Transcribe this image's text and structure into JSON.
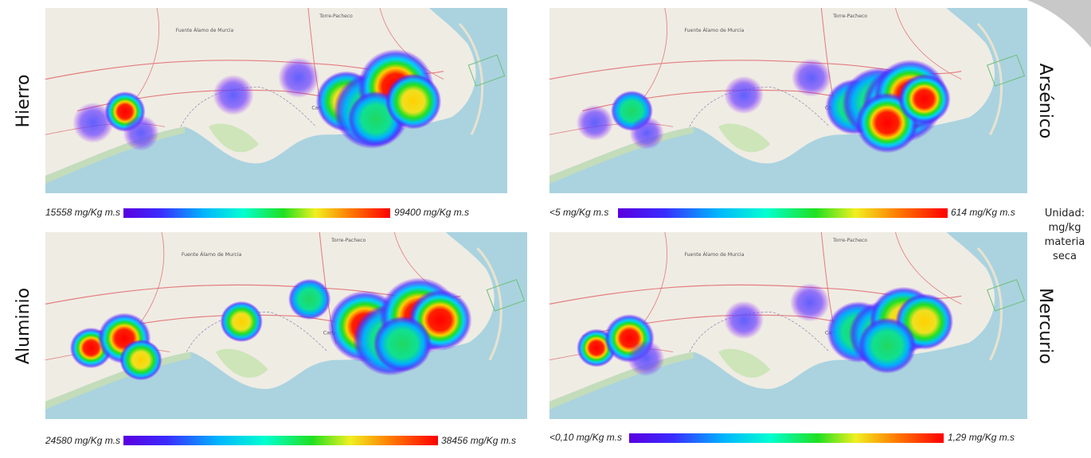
{
  "panels": [
    {
      "label": "Hierro",
      "legend": {
        "min": "15558 mg/Kg m.s",
        "max": "99400 mg/Kg m.s"
      }
    },
    {
      "label": "Arsénico",
      "legend": {
        "min": "<5 mg/Kg m.s",
        "max": "614 mg/Kg m.s"
      }
    },
    {
      "label": "Aluminio",
      "legend": {
        "min": "24580 mg/Kg m.s",
        "max": "38456 mg/Kg m.s"
      }
    },
    {
      "label": "Mercurio",
      "legend": {
        "min": "<0,10 mg/Kg m.s",
        "max": "1,29 mg/Kg m.s"
      }
    }
  ],
  "map_labels": {
    "town": "Cartagena",
    "north": "Torre-Pacheco",
    "west": "Fuente Álamo de Murcia"
  },
  "unit_note": [
    "Unidad:",
    "mg/kg",
    "materia",
    "seca"
  ]
}
